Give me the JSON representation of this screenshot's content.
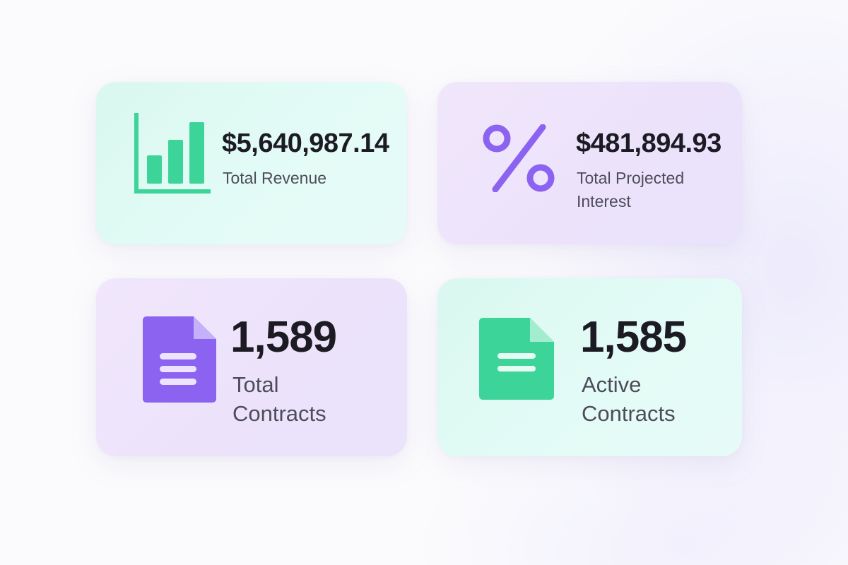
{
  "colors": {
    "green_accent": "#3dd49a",
    "purple_accent": "#8b63f0",
    "green_card": "#dff9f2",
    "purple_card": "#eee5fb",
    "value_text": "#1c1b24",
    "label_text": "#4d4c59"
  },
  "cards": [
    {
      "icon": "bar-chart-icon",
      "value": "$5,640,987.14",
      "label": "Total Revenue"
    },
    {
      "icon": "percent-icon",
      "value": "$481,894.93",
      "label": "Total Projected Interest"
    },
    {
      "icon": "document-icon",
      "value": "1,589",
      "label": "Total Contracts"
    },
    {
      "icon": "document-icon",
      "value": "1,585",
      "label": "Active Contracts"
    }
  ]
}
